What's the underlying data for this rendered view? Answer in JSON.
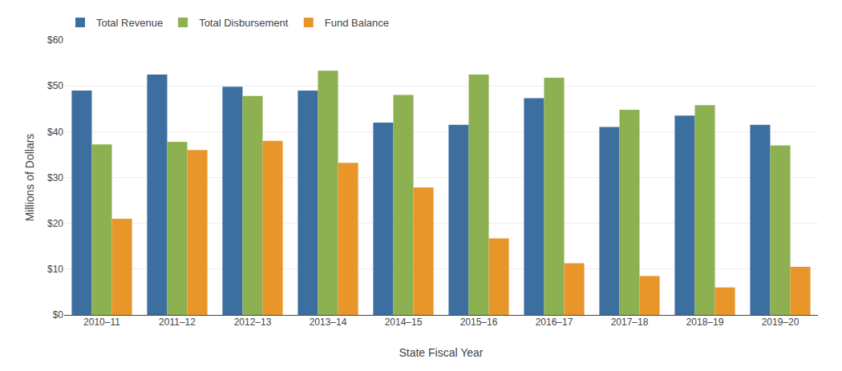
{
  "chart_data": {
    "type": "bar",
    "categories": [
      "2010–11",
      "2011–12",
      "2012–13",
      "2013–14",
      "2014–15",
      "2015–16",
      "2016–17",
      "2017–18",
      "2018–19",
      "2019–20"
    ],
    "series": [
      {
        "name": "Total Revenue",
        "color": "#3c6fa0",
        "values": [
          49.0,
          52.5,
          49.8,
          49.0,
          42.0,
          41.5,
          47.3,
          41.0,
          43.5,
          41.5
        ]
      },
      {
        "name": "Total Disbursement",
        "color": "#8db050",
        "values": [
          37.2,
          37.8,
          47.8,
          53.3,
          48.0,
          52.5,
          51.8,
          44.8,
          45.8,
          37.0
        ]
      },
      {
        "name": "Fund Balance",
        "color": "#e8962a",
        "values": [
          21.0,
          36.0,
          38.0,
          33.2,
          27.8,
          16.7,
          11.3,
          8.5,
          6.0,
          10.5
        ]
      }
    ],
    "xlabel": "State Fiscal Year",
    "ylabel": "Millions of Dollars",
    "ylim": [
      0,
      60
    ],
    "yticks": [
      {
        "value": 0,
        "label": "$0"
      },
      {
        "value": 10,
        "label": "$10"
      },
      {
        "value": 20,
        "label": "$20"
      },
      {
        "value": 30,
        "label": "$30"
      },
      {
        "value": 40,
        "label": "$40"
      },
      {
        "value": 50,
        "label": "$50"
      },
      {
        "value": 60,
        "label": "$60"
      }
    ],
    "grid": true,
    "legend": "upper left"
  }
}
